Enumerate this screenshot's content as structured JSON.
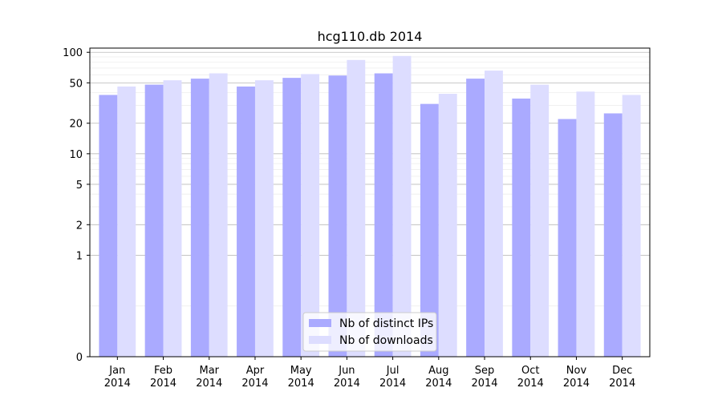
{
  "chart_data": {
    "type": "bar",
    "title": "hcg110.db 2014",
    "xlabel": "",
    "ylabel": "",
    "y_scale": "symlog",
    "ylim": [
      0,
      110
    ],
    "yticks": [
      0,
      1,
      2,
      5,
      10,
      20,
      50,
      100
    ],
    "grid": "horizontal",
    "legend_position": "bottom-center",
    "categories": [
      [
        "Jan",
        "2014"
      ],
      [
        "Feb",
        "2014"
      ],
      [
        "Mar",
        "2014"
      ],
      [
        "Apr",
        "2014"
      ],
      [
        "May",
        "2014"
      ],
      [
        "Jun",
        "2014"
      ],
      [
        "Jul",
        "2014"
      ],
      [
        "Aug",
        "2014"
      ],
      [
        "Sep",
        "2014"
      ],
      [
        "Oct",
        "2014"
      ],
      [
        "Nov",
        "2014"
      ],
      [
        "Dec",
        "2014"
      ]
    ],
    "series": [
      {
        "name": "Nb of distinct IPs",
        "color": "#aaaaff",
        "values": [
          38,
          48,
          55,
          46,
          56,
          59,
          62,
          31,
          55,
          35,
          22,
          25
        ]
      },
      {
        "name": "Nb of downloads",
        "color": "#ddddff",
        "values": [
          46,
          53,
          62,
          53,
          61,
          84,
          92,
          39,
          66,
          48,
          41,
          38
        ]
      }
    ]
  }
}
